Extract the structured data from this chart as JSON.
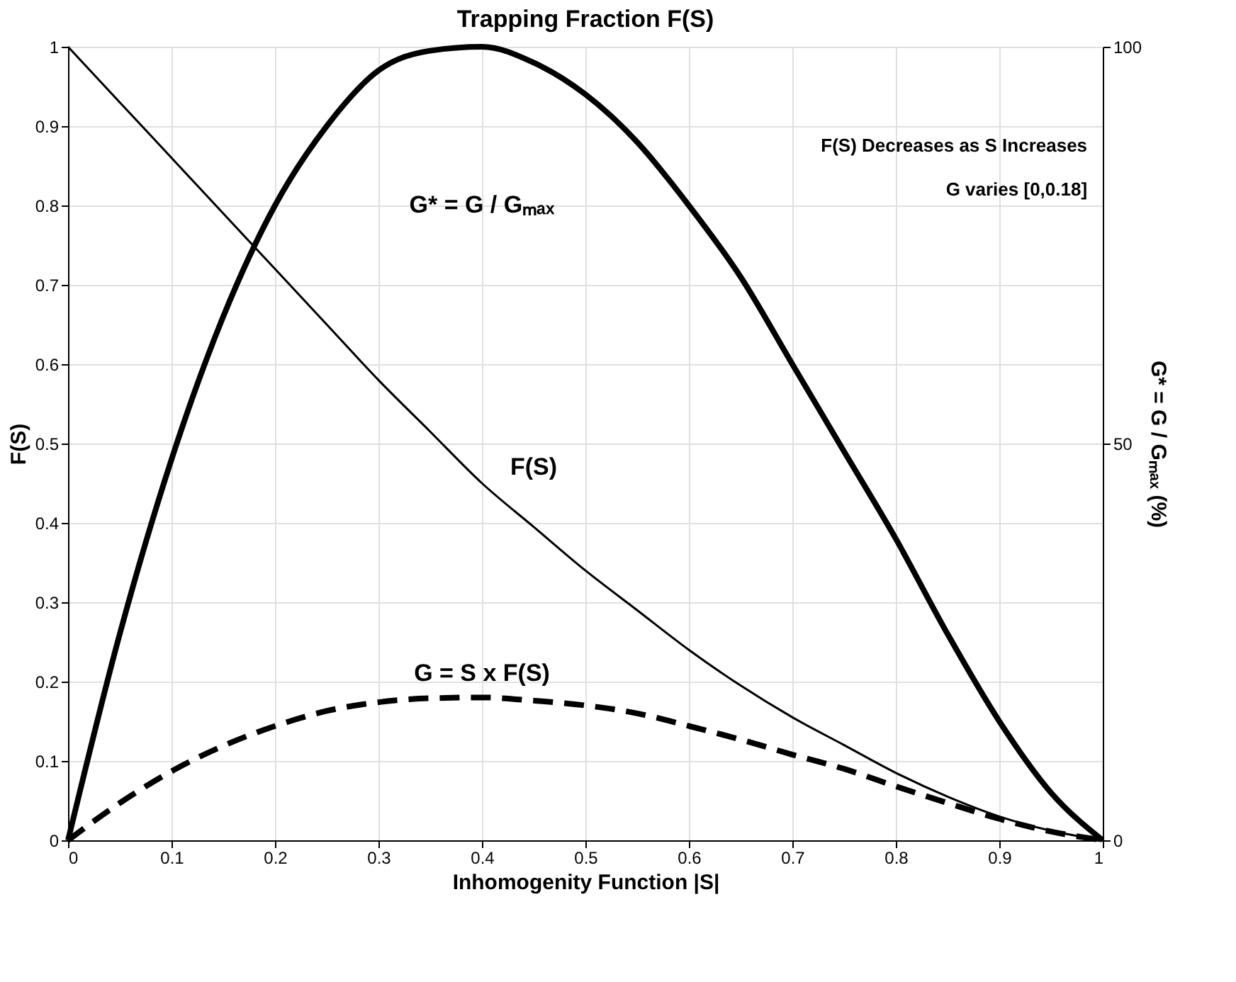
{
  "chart_data": {
    "type": "line",
    "title": "Trapping Fraction F(S)",
    "xlabel": "Inhomogenity Function |S|",
    "ylabel": "F(S)",
    "y2label": "G* = G / Gₘₐₓ (%)",
    "x": [
      0,
      0.05,
      0.1,
      0.15,
      0.2,
      0.25,
      0.3,
      0.35,
      0.4,
      0.45,
      0.5,
      0.55,
      0.6,
      0.65,
      0.7,
      0.75,
      0.8,
      0.85,
      0.9,
      0.95,
      1
    ],
    "series": [
      {
        "color": "#000000",
        "line_style": "solid",
        "values": [
          1,
          0.93,
          0.86,
          0.79,
          0.72,
          0.65,
          0.58,
          0.515,
          0.45,
          0.395,
          0.34,
          0.29,
          0.24,
          0.195,
          0.155,
          0.12,
          0.085,
          0.055,
          0.03,
          0.012,
          0
        ]
      },
      {
        "color": "#000000",
        "line_style": "dashed",
        "values": [
          0,
          0.047,
          0.087,
          0.119,
          0.144,
          0.163,
          0.174,
          0.179,
          0.18,
          0.176,
          0.17,
          0.16,
          0.144,
          0.127,
          0.108,
          0.09,
          0.068,
          0.047,
          0.027,
          0.011,
          0
        ]
      },
      {
        "color": "#000000",
        "line_style": "solid",
        "axis": "y2",
        "values": [
          0,
          26,
          48,
          66,
          80,
          90,
          97,
          99.5,
          100,
          98,
          94,
          88,
          80,
          71,
          60,
          49,
          38,
          26,
          15,
          6,
          0
        ]
      }
    ],
    "xlim": [
      0,
      1
    ],
    "xticks": [
      0,
      0.1,
      0.2,
      0.3,
      0.4,
      0.5,
      0.6,
      0.7,
      0.8,
      0.9,
      1
    ],
    "ylim": [
      0,
      1
    ],
    "yticks": [
      0,
      0.1,
      0.2,
      0.3,
      0.4,
      0.5,
      0.6,
      0.7,
      0.8,
      0.9,
      1
    ],
    "y2lim": [
      0,
      100
    ],
    "y2ticks": [
      0,
      50,
      100
    ],
    "grid": true,
    "marker": "none",
    "annotations": [
      "G* = G / Gₘₐₓ",
      "F(S)",
      "G = S x F(S)",
      "F(S) Decreases as S Increases",
      "G varies [0,0.18]"
    ]
  }
}
